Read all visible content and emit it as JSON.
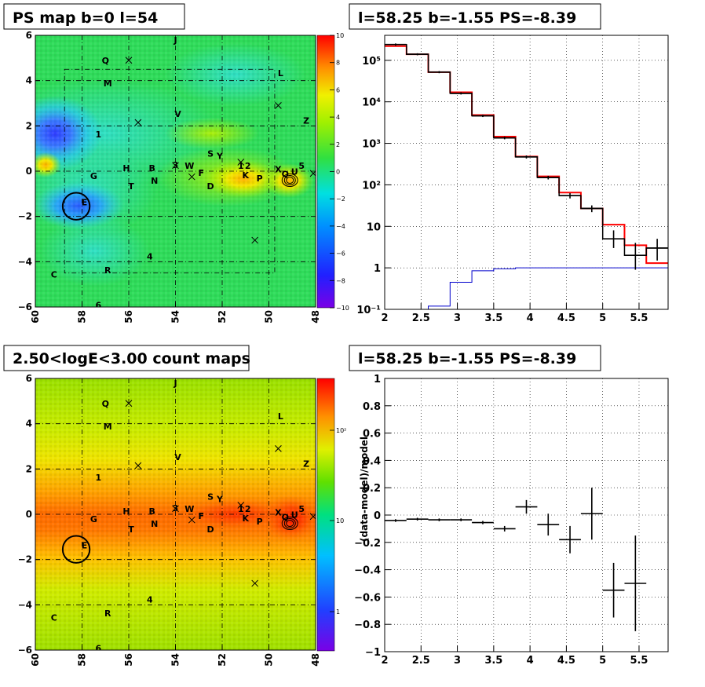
{
  "panels": {
    "ps_map": {
      "title": "PS map b=0 l=54"
    },
    "spectrum": {
      "title": "l=58.25 b=-1.55 PS=-8.39"
    },
    "count_map": {
      "title": "2.50<logE<3.00 count maps"
    },
    "residual": {
      "title": "l=58.25 b=-1.55 PS=-8.39",
      "ylabel": "(data-model)/model"
    }
  },
  "map_axes": {
    "x_ticks": [
      "60",
      "58",
      "56",
      "54",
      "52",
      "50",
      "48"
    ],
    "y_ticks": [
      "6",
      "4",
      "2",
      "0",
      "−2",
      "−4",
      "−6"
    ]
  },
  "ps_colorbar": {
    "ticks": [
      "10",
      "8",
      "6",
      "4",
      "2",
      "0",
      "−2",
      "−4",
      "−6",
      "−8",
      "−10"
    ]
  },
  "count_colorbar": {
    "ticks": [
      "10²",
      "10",
      "1"
    ]
  },
  "sources": [
    {
      "name": "J",
      "l": 54.0,
      "b": 5.75
    },
    {
      "name": "Q",
      "l": 57.0,
      "b": 4.85
    },
    {
      "name": "M",
      "l": 56.9,
      "b": 3.85
    },
    {
      "name": "L",
      "l": 49.5,
      "b": 4.3
    },
    {
      "name": "V",
      "l": 53.9,
      "b": 2.5
    },
    {
      "name": "Z",
      "l": 48.4,
      "b": 2.2
    },
    {
      "name": "1",
      "l": 57.3,
      "b": 1.6
    },
    {
      "name": "S",
      "l": 52.5,
      "b": 0.75
    },
    {
      "name": "Y",
      "l": 52.1,
      "b": 0.65
    },
    {
      "name": "H",
      "l": 56.1,
      "b": 0.1
    },
    {
      "name": "B",
      "l": 55.0,
      "b": 0.1
    },
    {
      "name": "3",
      "l": 54.0,
      "b": 0.25
    },
    {
      "name": "W",
      "l": 53.4,
      "b": 0.2
    },
    {
      "name": "F",
      "l": 52.9,
      "b": -0.1
    },
    {
      "name": "1",
      "l": 51.2,
      "b": 0.2
    },
    {
      "name": "2",
      "l": 50.9,
      "b": 0.2
    },
    {
      "name": "K",
      "l": 51.0,
      "b": -0.2
    },
    {
      "name": "P",
      "l": 50.4,
      "b": -0.35
    },
    {
      "name": "X",
      "l": 49.6,
      "b": 0.05
    },
    {
      "name": "Q",
      "l": 49.3,
      "b": -0.15
    },
    {
      "name": "U",
      "l": 48.9,
      "b": -0.05
    },
    {
      "name": "5",
      "l": 48.6,
      "b": 0.2
    },
    {
      "name": "G",
      "l": 57.5,
      "b": -0.25
    },
    {
      "name": "N",
      "l": 54.9,
      "b": -0.45
    },
    {
      "name": "T",
      "l": 55.9,
      "b": -0.7
    },
    {
      "name": "D",
      "l": 52.5,
      "b": -0.7
    },
    {
      "name": "E",
      "l": 57.9,
      "b": -1.4
    },
    {
      "name": "4",
      "l": 55.1,
      "b": -3.8
    },
    {
      "name": "C",
      "l": 59.2,
      "b": -4.6
    },
    {
      "name": "R",
      "l": 56.9,
      "b": -4.4
    },
    {
      "name": "6",
      "l": 57.3,
      "b": -5.95
    }
  ],
  "crosses": [
    {
      "l": 56.0,
      "b": 4.9
    },
    {
      "l": 55.6,
      "b": 2.15
    },
    {
      "l": 49.6,
      "b": 2.9
    },
    {
      "l": 54.0,
      "b": 0.25
    },
    {
      "l": 53.3,
      "b": -0.25
    },
    {
      "l": 51.2,
      "b": 0.4
    },
    {
      "l": 48.1,
      "b": -0.1
    },
    {
      "l": 50.6,
      "b": -3.05
    }
  ],
  "circle": {
    "l": 58.25,
    "b": -1.55,
    "r_deg": 0.55
  },
  "chart_data": [
    {
      "type": "line",
      "title": "l=58.25 b=-1.55 PS=-8.39",
      "yscale": "log",
      "xlim": [
        2.0,
        5.9
      ],
      "ylim": [
        0.1,
        400000
      ],
      "x_ticks": [
        "2",
        "2.5",
        "3",
        "3.5",
        "4",
        "4.5",
        "5",
        "5.5"
      ],
      "y_ticks": [
        {
          "label": "10⁻¹",
          "value": 0.1
        },
        {
          "label": "1",
          "value": 1
        },
        {
          "label": "10",
          "value": 10
        },
        {
          "label": "10²",
          "value": 100
        },
        {
          "label": "10³",
          "value": 1000
        },
        {
          "label": "10⁴",
          "value": 10000
        },
        {
          "label": "10⁵",
          "value": 100000
        }
      ],
      "bin_edges": [
        2.0,
        2.3,
        2.6,
        2.9,
        3.2,
        3.5,
        3.8,
        4.1,
        4.4,
        4.7,
        5.0,
        5.3,
        5.6,
        5.9
      ],
      "series": [
        {
          "color": "#ff0000",
          "values": [
            220000,
            140000,
            52000,
            17000,
            4800,
            1450,
            480,
            160,
            65,
            27,
            11,
            3.5,
            1.3
          ]
        },
        {
          "color": "#000000",
          "values": [
            240000,
            140000,
            52000,
            16000,
            4600,
            1350,
            470,
            150,
            55,
            27,
            5,
            2,
            3
          ]
        },
        {
          "color": "#0000cc",
          "values": [
            0.1,
            0.1,
            0.12,
            0.45,
            0.85,
            0.95,
            1.0,
            1.0,
            1.0,
            1.0,
            1.0,
            1.0,
            1.0
          ]
        }
      ],
      "data_points": [
        {
          "x": 2.15,
          "y": 240000,
          "ylo": 225000,
          "yhi": 255000
        },
        {
          "x": 2.45,
          "y": 140000,
          "ylo": 132000,
          "yhi": 148000
        },
        {
          "x": 2.75,
          "y": 52000,
          "ylo": 49000,
          "yhi": 55000
        },
        {
          "x": 3.05,
          "y": 16000,
          "ylo": 15000,
          "yhi": 17000
        },
        {
          "x": 3.35,
          "y": 4600,
          "ylo": 4300,
          "yhi": 4900
        },
        {
          "x": 3.65,
          "y": 1350,
          "ylo": 1250,
          "yhi": 1450
        },
        {
          "x": 3.95,
          "y": 470,
          "ylo": 430,
          "yhi": 510
        },
        {
          "x": 4.25,
          "y": 150,
          "ylo": 135,
          "yhi": 165
        },
        {
          "x": 4.55,
          "y": 55,
          "ylo": 47,
          "yhi": 63
        },
        {
          "x": 4.85,
          "y": 27,
          "ylo": 22,
          "yhi": 32
        },
        {
          "x": 5.15,
          "y": 5,
          "ylo": 3,
          "yhi": 8
        },
        {
          "x": 5.45,
          "y": 2,
          "ylo": 0.9,
          "yhi": 4
        },
        {
          "x": 5.75,
          "y": 3,
          "ylo": 1.5,
          "yhi": 5
        }
      ]
    },
    {
      "type": "scatter",
      "title": "l=58.25 b=-1.55 PS=-8.39",
      "ylabel": "(data-model)/model",
      "xlim": [
        2.0,
        5.9
      ],
      "ylim": [
        -1,
        1
      ],
      "x_ticks": [
        "2",
        "2.5",
        "3",
        "3.5",
        "4",
        "4.5",
        "5",
        "5.5"
      ],
      "y_ticks": [
        "1",
        "0.8",
        "0.6",
        "0.4",
        "0.2",
        "0",
        "−0.2",
        "−0.4",
        "−0.6",
        "−0.8",
        "−1"
      ],
      "points": [
        {
          "x": 2.15,
          "y": -0.04,
          "xerr": 0.15,
          "yerr": 0.01
        },
        {
          "x": 2.45,
          "y": -0.03,
          "xerr": 0.15,
          "yerr": 0.01
        },
        {
          "x": 2.75,
          "y": -0.035,
          "xerr": 0.15,
          "yerr": 0.01
        },
        {
          "x": 3.05,
          "y": -0.035,
          "xerr": 0.15,
          "yerr": 0.01
        },
        {
          "x": 3.35,
          "y": -0.055,
          "xerr": 0.15,
          "yerr": 0.012
        },
        {
          "x": 3.65,
          "y": -0.1,
          "xerr": 0.15,
          "yerr": 0.02
        },
        {
          "x": 3.95,
          "y": 0.06,
          "xerr": 0.15,
          "yerr": 0.05
        },
        {
          "x": 4.25,
          "y": -0.07,
          "xerr": 0.15,
          "yerr": 0.08
        },
        {
          "x": 4.55,
          "y": -0.18,
          "xerr": 0.15,
          "yerr": 0.1
        },
        {
          "x": 4.85,
          "y": 0.01,
          "xerr": 0.15,
          "yerr": 0.19
        },
        {
          "x": 5.15,
          "y": -0.55,
          "xerr": 0.15,
          "yerr": 0.2
        },
        {
          "x": 5.45,
          "y": -0.5,
          "xerr": 0.15,
          "yerr": 0.35
        }
      ]
    }
  ]
}
